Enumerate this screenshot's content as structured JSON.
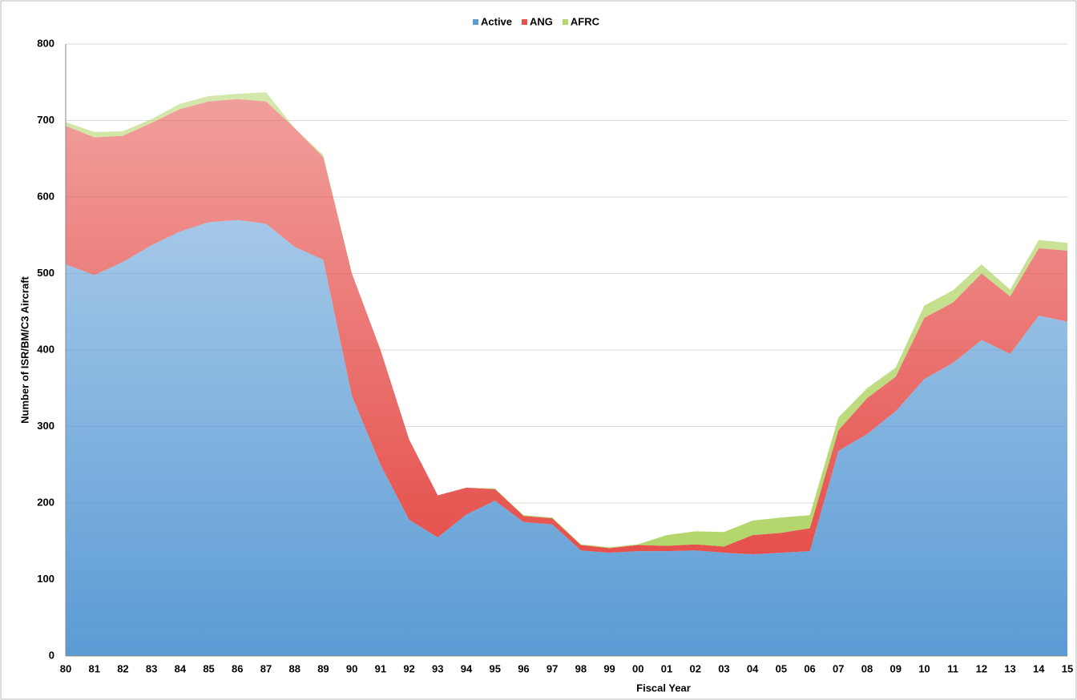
{
  "chart_data": {
    "type": "stacked_area",
    "x_label": "Fiscal Year",
    "y_label": "Number of ISR/BM/C3 Aircraft",
    "categories": [
      "80",
      "81",
      "82",
      "83",
      "84",
      "85",
      "86",
      "87",
      "88",
      "89",
      "90",
      "91",
      "92",
      "93",
      "94",
      "95",
      "96",
      "97",
      "98",
      "99",
      "00",
      "01",
      "02",
      "03",
      "04",
      "05",
      "06",
      "07",
      "08",
      "09",
      "10",
      "11",
      "12",
      "13",
      "14",
      "15"
    ],
    "series": [
      {
        "name": "Active",
        "color": "#5b9bd5",
        "values": [
          512,
          498,
          515,
          537,
          555,
          567,
          570,
          565,
          535,
          518,
          340,
          250,
          178,
          155,
          185,
          203,
          175,
          172,
          138,
          135,
          137,
          137,
          138,
          135,
          133,
          135,
          137,
          268,
          290,
          320,
          362,
          383,
          413,
          395,
          445,
          437
        ]
      },
      {
        "name": "ANG",
        "color": "#e5504c",
        "values": [
          181,
          180,
          165,
          160,
          160,
          158,
          158,
          160,
          155,
          134,
          160,
          150,
          105,
          55,
          35,
          15,
          8,
          8,
          7,
          6,
          8,
          7,
          8,
          8,
          25,
          26,
          30,
          27,
          47,
          45,
          80,
          79,
          87,
          75,
          88,
          93
        ]
      },
      {
        "name": "AFRC",
        "color": "#b3d56a",
        "values": [
          5,
          7,
          6,
          5,
          7,
          7,
          7,
          12,
          0,
          3,
          0,
          0,
          0,
          0,
          0,
          1,
          1,
          1,
          1,
          1,
          1,
          14,
          17,
          19,
          19,
          20,
          17,
          17,
          13,
          12,
          16,
          16,
          12,
          9,
          11,
          10
        ]
      }
    ],
    "ylim": [
      0,
      800
    ],
    "yticks": [
      0,
      100,
      200,
      300,
      400,
      500,
      600,
      700,
      800
    ],
    "grid": true,
    "legend": "top"
  }
}
